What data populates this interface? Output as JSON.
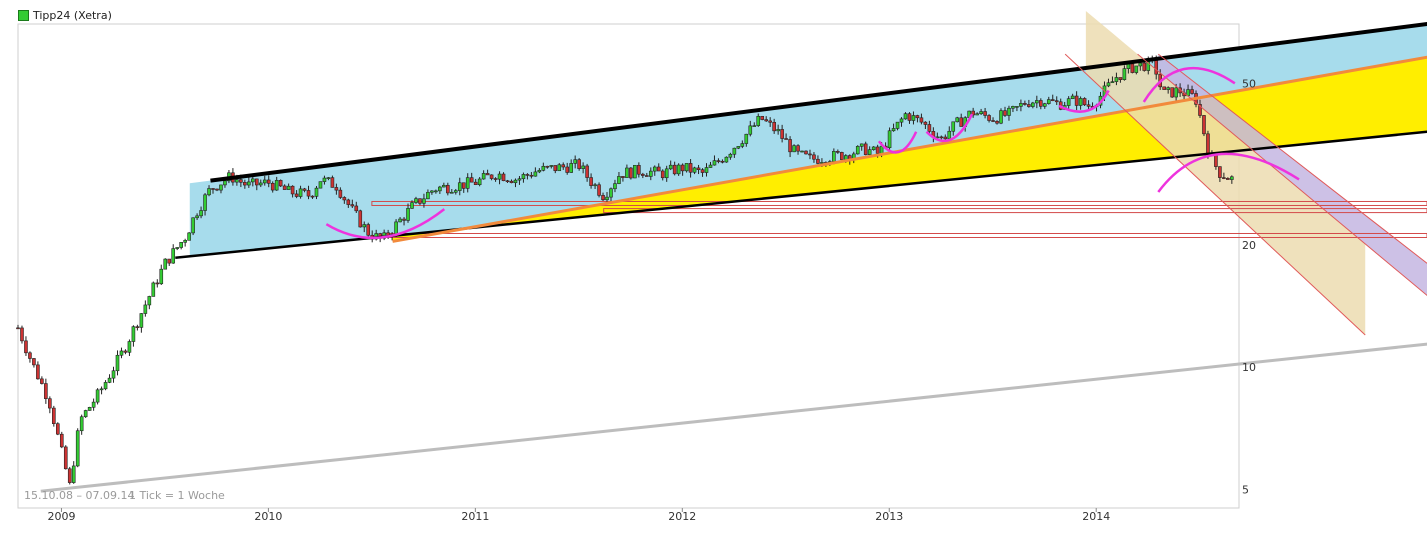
{
  "chart_data": {
    "type": "candlestick",
    "title": "Tipp24 (Xetra)",
    "legend": {
      "label": "Tipp24 (Xetra)",
      "color": "#33cc33",
      "position": "top-left"
    },
    "range_label": "15.10.08 – 07.09.14",
    "tick_label": "1 Tick = 1 Woche",
    "y_scale": "log",
    "ylim": [
      4.5,
      70
    ],
    "xlim": [
      2008.79,
      2014.69
    ],
    "x_ticks": [
      {
        "label": "2009",
        "year": 2009
      },
      {
        "label": "2010",
        "year": 2010
      },
      {
        "label": "2011",
        "year": 2011
      },
      {
        "label": "2012",
        "year": 2012
      },
      {
        "label": "2013",
        "year": 2013
      },
      {
        "label": "2014",
        "year": 2014
      }
    ],
    "y_ticks": [
      {
        "label": "5",
        "value": 5
      },
      {
        "label": "10",
        "value": 10
      },
      {
        "label": "20",
        "value": 20
      },
      {
        "label": "50",
        "value": 50
      }
    ],
    "series": [
      {
        "anchors": [
          [
            2008.79,
            12.5
          ],
          [
            2008.86,
            10.2
          ],
          [
            2008.94,
            8.3
          ],
          [
            2009.0,
            6.2
          ],
          [
            2009.04,
            5.1
          ],
          [
            2009.09,
            7.4
          ],
          [
            2009.18,
            8.6
          ],
          [
            2009.3,
            11.0
          ],
          [
            2009.42,
            14.8
          ],
          [
            2009.5,
            18.0
          ],
          [
            2009.6,
            21.0
          ],
          [
            2009.65,
            24.0
          ],
          [
            2009.72,
            27.5
          ],
          [
            2009.82,
            29.5
          ],
          [
            2009.9,
            28.0
          ],
          [
            2010.0,
            28.5
          ],
          [
            2010.1,
            27.0
          ],
          [
            2010.2,
            26.5
          ],
          [
            2010.25,
            29.0
          ],
          [
            2010.33,
            28.0
          ],
          [
            2010.4,
            24.5
          ],
          [
            2010.48,
            21.5
          ],
          [
            2010.55,
            20.5
          ],
          [
            2010.62,
            22.5
          ],
          [
            2010.7,
            25.0
          ],
          [
            2010.8,
            27.5
          ],
          [
            2010.9,
            28.0
          ],
          [
            2011.0,
            28.5
          ],
          [
            2011.1,
            30.0
          ],
          [
            2011.2,
            29.0
          ],
          [
            2011.3,
            30.5
          ],
          [
            2011.4,
            31.0
          ],
          [
            2011.5,
            31.5
          ],
          [
            2011.55,
            29.0
          ],
          [
            2011.62,
            26.5
          ],
          [
            2011.7,
            30.0
          ],
          [
            2011.8,
            30.5
          ],
          [
            2011.9,
            30.0
          ],
          [
            2012.0,
            31.0
          ],
          [
            2012.1,
            30.0
          ],
          [
            2012.2,
            33.0
          ],
          [
            2012.3,
            37.0
          ],
          [
            2012.38,
            41.0
          ],
          [
            2012.46,
            38.0
          ],
          [
            2012.55,
            33.5
          ],
          [
            2012.62,
            32.5
          ],
          [
            2012.72,
            33.0
          ],
          [
            2012.8,
            33.5
          ],
          [
            2012.88,
            34.5
          ],
          [
            2012.95,
            33.5
          ],
          [
            2013.0,
            37.0
          ],
          [
            2013.08,
            42.0
          ],
          [
            2013.16,
            40.0
          ],
          [
            2013.25,
            36.5
          ],
          [
            2013.32,
            39.5
          ],
          [
            2013.4,
            42.5
          ],
          [
            2013.5,
            41.0
          ],
          [
            2013.58,
            42.0
          ],
          [
            2013.66,
            45.0
          ],
          [
            2013.74,
            45.5
          ],
          [
            2013.82,
            44.5
          ],
          [
            2013.9,
            45.5
          ],
          [
            2013.96,
            44.0
          ],
          [
            2014.02,
            46.5
          ],
          [
            2014.1,
            52.0
          ],
          [
            2014.18,
            55.0
          ],
          [
            2014.28,
            56.0
          ],
          [
            2014.32,
            47.0
          ],
          [
            2014.4,
            48.0
          ],
          [
            2014.48,
            46.0
          ],
          [
            2014.55,
            33.0
          ],
          [
            2014.6,
            30.0
          ],
          [
            2014.66,
            29.0
          ]
        ]
      }
    ],
    "annotations": {
      "trend_channel_top": [
        [
          2009.72,
          28.8
        ],
        [
          2015.6,
          70.0
        ]
      ],
      "trend_channel_bottom": [
        [
          2009.55,
          18.6
        ],
        [
          2015.6,
          38.0
        ]
      ],
      "orange_trendline": [
        [
          2010.6,
          20.4
        ],
        [
          2015.6,
          58.0
        ]
      ],
      "grey_support_line": [
        [
          2008.9,
          4.95
        ],
        [
          2015.6,
          11.4
        ]
      ],
      "horizontal_levels": [
        21.1,
        24.3,
        25.3
      ],
      "down_channel_outer": [
        [
          2013.85,
          59.0
        ],
        [
          2015.3,
          12.0
        ]
      ],
      "down_channel_middle": [
        [
          2014.2,
          59.0
        ],
        [
          2015.6,
          15.0
        ]
      ],
      "down_channel_inner": [
        [
          2014.3,
          59.0
        ],
        [
          2015.6,
          18.0
        ]
      ]
    }
  }
}
